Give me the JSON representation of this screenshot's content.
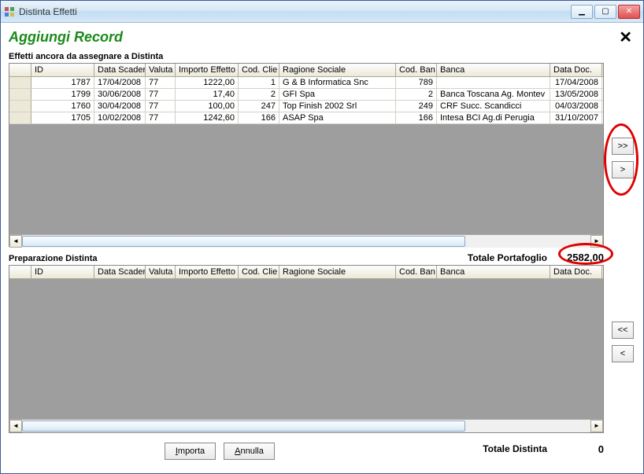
{
  "window": {
    "title": "Distinta Effetti",
    "heading": "Aggiungi Record"
  },
  "sections": {
    "top_title": "Effetti ancora da assegnare a Distinta",
    "bottom_title": "Preparazione Distinta"
  },
  "columns": {
    "id": "ID",
    "data_scader": "Data Scader",
    "valuta": "Valuta",
    "importo": "Importo Effetto",
    "cod_clie": "Cod. Clie",
    "ragione": "Ragione Sociale",
    "cod_ban": "Cod. Ban",
    "banca": "Banca",
    "data_doc": "Data Doc."
  },
  "rows_top": [
    {
      "id": "1787",
      "data_scader": "17/04/2008",
      "valuta": "77",
      "importo": "1222,00",
      "cod_clie": "1",
      "ragione": "G & B Informatica Snc",
      "cod_ban": "789",
      "banca": "",
      "data_doc": "17/04/2008"
    },
    {
      "id": "1799",
      "data_scader": "30/06/2008",
      "valuta": "77",
      "importo": "17,40",
      "cod_clie": "2",
      "ragione": "GFI Spa",
      "cod_ban": "2",
      "banca": "Banca Toscana Ag. Montev",
      "data_doc": "13/05/2008"
    },
    {
      "id": "1760",
      "data_scader": "30/04/2008",
      "valuta": "77",
      "importo": "100,00",
      "cod_clie": "247",
      "ragione": "Top Finish 2002 Srl",
      "cod_ban": "249",
      "banca": "CRF Succ. Scandicci",
      "data_doc": "04/03/2008"
    },
    {
      "id": "1705",
      "data_scader": "10/02/2008",
      "valuta": "77",
      "importo": "1242,60",
      "cod_clie": "166",
      "ragione": "ASAP Spa",
      "cod_ban": "166",
      "banca": "Intesa BCI Ag.di Perugia",
      "data_doc": "31/10/2007"
    }
  ],
  "totals": {
    "portafoglio_label": "Totale Portafoglio",
    "portafoglio_value": "2582,00",
    "distinta_label": "Totale Distinta",
    "distinta_value": "0"
  },
  "buttons": {
    "move_all_right": ">>",
    "move_right": ">",
    "move_all_left": "<<",
    "move_left": "<",
    "importa": "Importa",
    "annulla": "Annulla"
  },
  "colors": {
    "heading": "#1a8a1a",
    "annotation": "#e00000",
    "grid_bg": "#9e9e9e"
  }
}
